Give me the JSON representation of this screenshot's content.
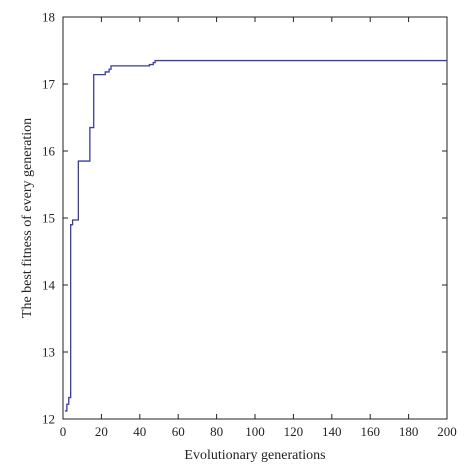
{
  "chart_data": {
    "type": "line",
    "title": "",
    "xlabel": "Evolutionary generations",
    "ylabel": "The best fitness of every generation",
    "xlim": [
      0,
      200
    ],
    "ylim": [
      12,
      18
    ],
    "xticks": [
      0,
      20,
      40,
      60,
      80,
      100,
      120,
      140,
      160,
      180,
      200
    ],
    "yticks": [
      12,
      13,
      14,
      15,
      16,
      17,
      18
    ],
    "grid": false,
    "line_color": "#3a3aa8",
    "series": [
      {
        "step": true,
        "x": [
          1,
          2,
          3,
          4,
          5,
          7,
          8,
          10,
          13,
          14,
          16,
          17,
          20,
          22,
          24,
          25,
          43,
          45,
          47,
          48,
          200
        ],
        "y": [
          12.12,
          12.22,
          12.32,
          14.9,
          14.97,
          14.97,
          15.85,
          15.85,
          15.85,
          16.35,
          17.14,
          17.14,
          17.14,
          17.18,
          17.22,
          17.27,
          17.27,
          17.29,
          17.32,
          17.35,
          17.35
        ]
      }
    ]
  }
}
